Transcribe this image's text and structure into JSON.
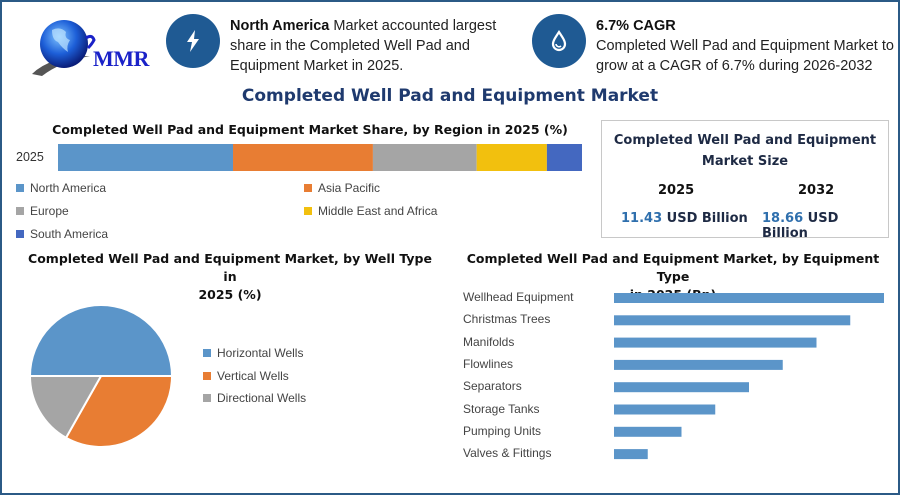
{
  "logo": {
    "text": "MMR",
    "icon": "globe-icon"
  },
  "highlights": [
    {
      "icon": "lightning-icon",
      "bold": "North America",
      "text": " Market accounted largest share in the Completed Well Pad and Equipment Market in 2025."
    },
    {
      "icon": "oil-drop-icon",
      "bold": "6.7% CAGR",
      "text": "Completed Well Pad and Equipment Market to grow at a CAGR of 6.7% during 2026-2032"
    }
  ],
  "main_title": "Completed Well Pad and Equipment Market",
  "market_size": {
    "title_line1": "Completed Well Pad and Equipment",
    "title_line2": "Market Size",
    "years": [
      {
        "year": "2025",
        "value": "11.43",
        "unit": " USD Billion"
      },
      {
        "year": "2032",
        "value": "18.66",
        "unit": " USD Billion"
      }
    ]
  },
  "colors": {
    "blue": "#5b95c9",
    "orange": "#e87d33",
    "gray": "#a5a5a5",
    "yellow": "#f2c00e",
    "navy": "#4468c0",
    "accent": "#1f5a93"
  },
  "chart_data": [
    {
      "type": "bar",
      "orientation": "horizontal-stacked",
      "title": "Completed Well Pad and Equipment Market Share, by Region in 2025 (%)",
      "categories": [
        "2025"
      ],
      "series": [
        {
          "name": "North America",
          "values": [
            33.4
          ],
          "color": "#5b95c9"
        },
        {
          "name": "Asia Pacific",
          "values": [
            26.7
          ],
          "color": "#e87d33"
        },
        {
          "name": "Europe",
          "values": [
            19.8
          ],
          "color": "#a5a5a5"
        },
        {
          "name": "Middle East and Africa",
          "values": [
            13.4
          ],
          "color": "#f2c00e"
        },
        {
          "name": "South America",
          "values": [
            6.7
          ],
          "color": "#4468c0"
        }
      ],
      "xlim": [
        0,
        100
      ],
      "legend": "bottom"
    },
    {
      "type": "pie",
      "title_line1": "Completed Well Pad and Equipment Market, by Well Type in",
      "title_line2": "2025 (%)",
      "labels": [
        "Horizontal Wells",
        "Vertical Wells",
        "Directional Wells"
      ],
      "values": [
        50,
        33.2,
        16.8
      ],
      "colors": [
        "#5b95c9",
        "#e87d33",
        "#a5a5a5"
      ],
      "legend": "right"
    },
    {
      "type": "bar",
      "orientation": "horizontal",
      "title_line1": "Completed Well Pad and Equipment Market, by Equipment Type",
      "title_line2": "in 2025 (Bn)",
      "categories": [
        "Wellhead Equipment",
        "Christmas Trees",
        "Manifolds",
        "Flowlines",
        "Separators",
        "Storage Tanks",
        "Pumping Units",
        "Valves & Fittings"
      ],
      "values": [
        8,
        7,
        6,
        5,
        4,
        3,
        2,
        1
      ],
      "value_note": "relative lengths; no axis shown",
      "color": "#5b95c9",
      "xlim": [
        0,
        8
      ]
    }
  ]
}
